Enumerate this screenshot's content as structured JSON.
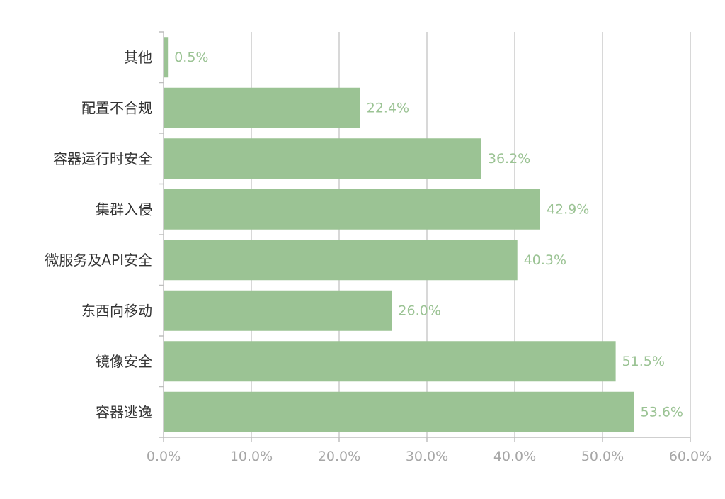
{
  "chart_data": {
    "type": "bar",
    "orientation": "horizontal",
    "categories": [
      "其他",
      "配置不合规",
      "容器运行时安全",
      "集群入侵",
      "微服务及API安全",
      "东西向移动",
      "镜像安全",
      "容器逃逸"
    ],
    "values": [
      0.5,
      22.4,
      36.2,
      42.9,
      40.3,
      26.0,
      51.5,
      53.6
    ],
    "value_labels": [
      "0.5%",
      "22.4%",
      "36.2%",
      "42.9%",
      "40.3%",
      "26.0%",
      "51.5%",
      "53.6%"
    ],
    "x_ticks": [
      0,
      10,
      20,
      30,
      40,
      50,
      60
    ],
    "x_tick_labels": [
      "0.0%",
      "10.0%",
      "20.0%",
      "30.0%",
      "40.0%",
      "50.0%",
      "60.0%"
    ],
    "xlim": [
      0,
      60
    ],
    "grid": "vertical",
    "legend": "none",
    "colors": {
      "bar": "#9bc394",
      "data_label": "#9bc394",
      "grid": "#cccccc",
      "axis": "#bfbfbf",
      "x_tick_text": "#a6a6a6",
      "y_tick_text": "#333333"
    }
  }
}
